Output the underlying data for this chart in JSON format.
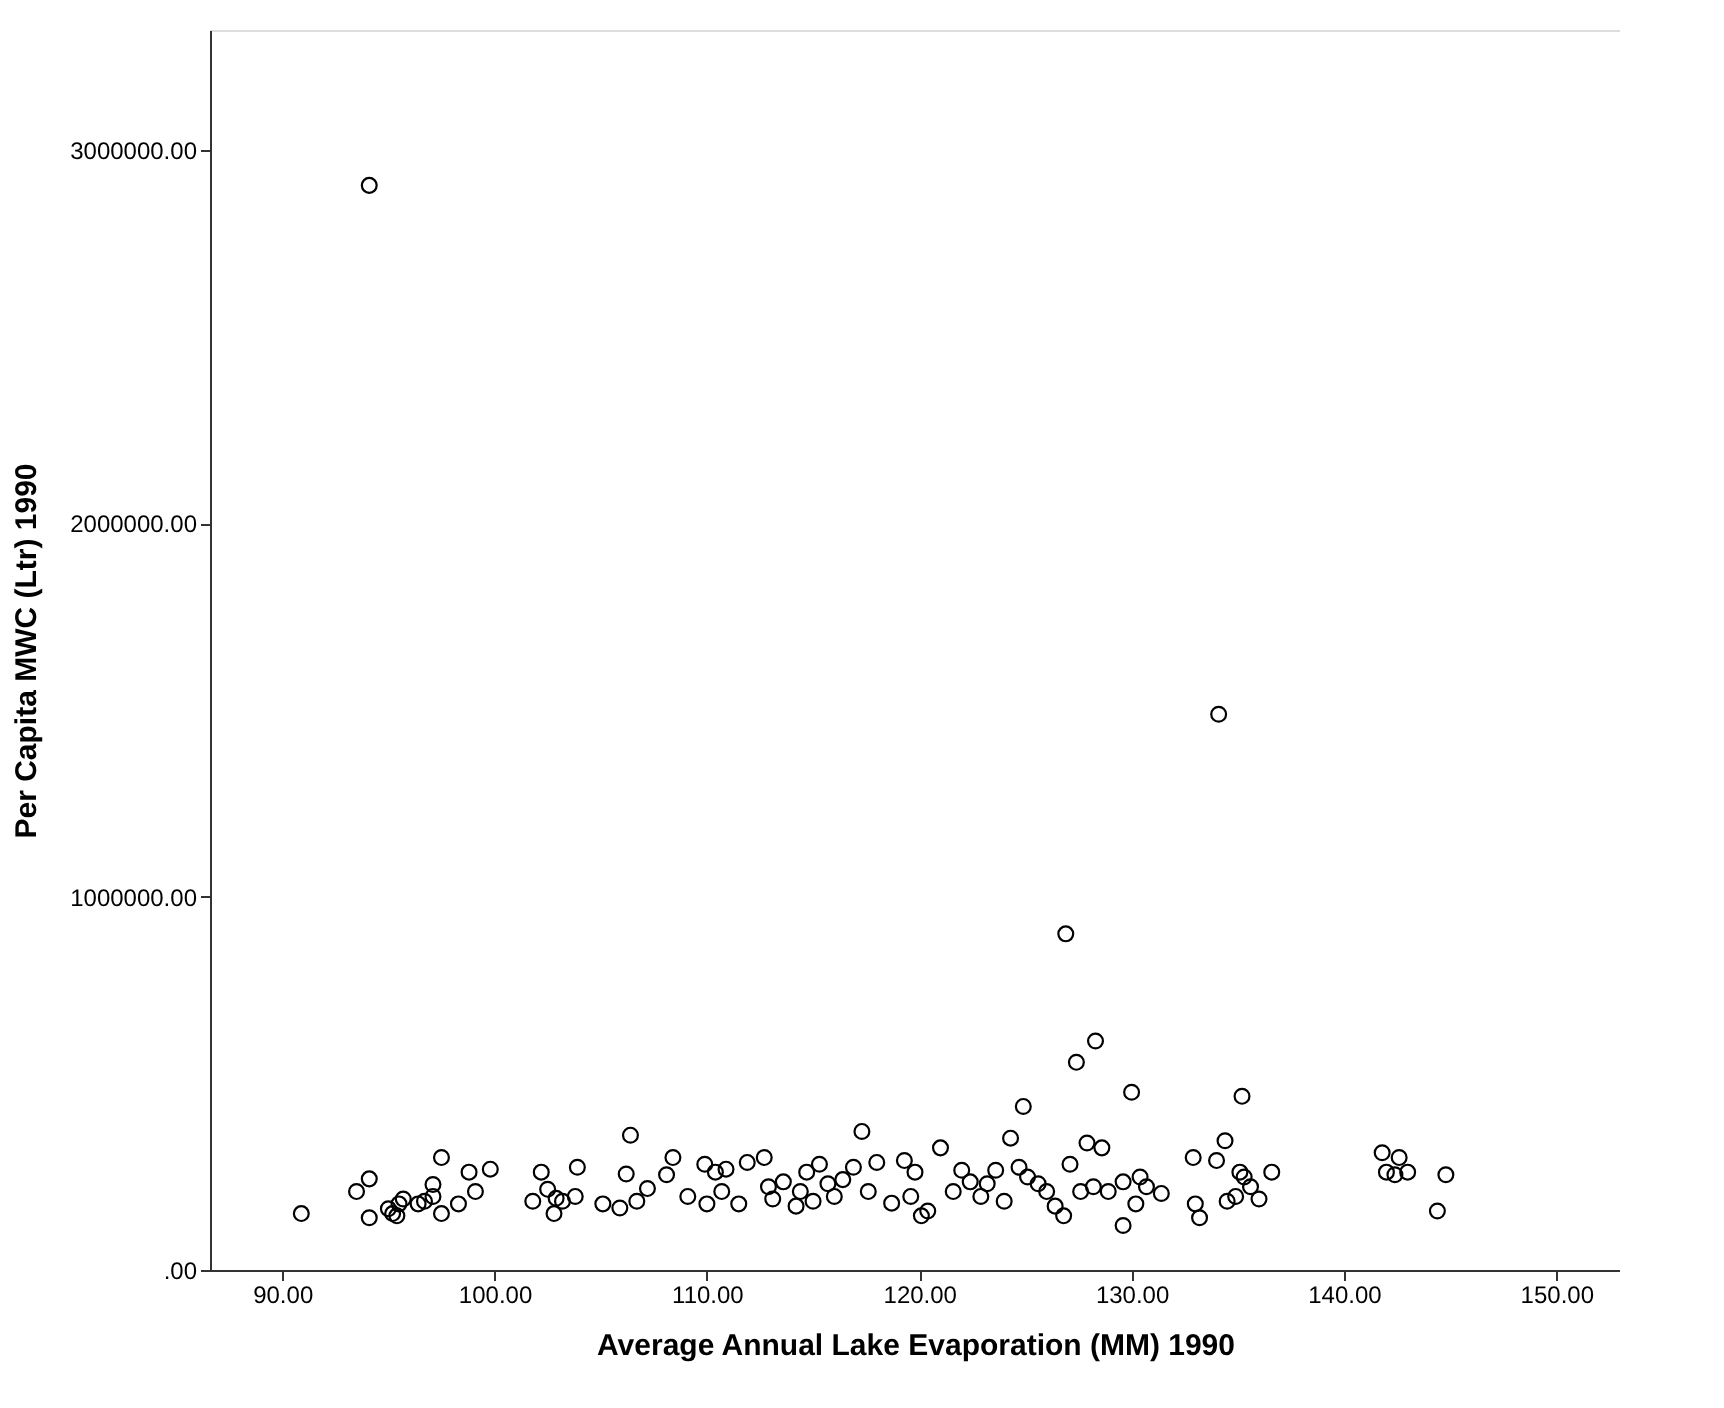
{
  "chart_data": {
    "type": "scatter",
    "xlabel": "Average Annual Lake Evaporation (MM) 1990",
    "ylabel": "Per Capita MWC (Ltr) 1990",
    "xlim": [
      86.6,
      153
    ],
    "ylim": [
      0,
      3320000
    ],
    "xticks": [
      {
        "value": 90,
        "label": "90.00"
      },
      {
        "value": 100,
        "label": "100.00"
      },
      {
        "value": 110,
        "label": "110.00"
      },
      {
        "value": 120,
        "label": "120.00"
      },
      {
        "value": 130,
        "label": "130.00"
      },
      {
        "value": 140,
        "label": "140.00"
      },
      {
        "value": 150,
        "label": "150.00"
      }
    ],
    "yticks": [
      {
        "value": 0,
        "label": ".00"
      },
      {
        "value": 1000000,
        "label": "1000000.00"
      },
      {
        "value": 2000000,
        "label": "2000000.00"
      },
      {
        "value": 3000000,
        "label": "3000000.00"
      }
    ],
    "grid": false,
    "legend": false,
    "marker": "circle",
    "series": [
      {
        "color": "#000000",
        "x": [
          94.1,
          134.1,
          126.9,
          128.3,
          127.4,
          130.0,
          135.2,
          124.9,
          117.3,
          90.9,
          93.5,
          94.1,
          94.1,
          95.0,
          95.2,
          95.4,
          95.5,
          95.7,
          96.4,
          96.7,
          97.1,
          97.1,
          97.5,
          97.5,
          98.3,
          98.8,
          99.1,
          99.8,
          101.8,
          102.2,
          102.5,
          102.8,
          102.9,
          103.2,
          103.8,
          103.9,
          105.1,
          105.9,
          106.2,
          106.4,
          106.7,
          107.2,
          108.1,
          108.4,
          109.1,
          109.9,
          110.0,
          110.4,
          110.7,
          110.9,
          111.5,
          111.9,
          112.7,
          112.9,
          113.1,
          113.6,
          114.2,
          114.4,
          114.7,
          115.0,
          115.3,
          115.7,
          116.0,
          116.4,
          116.9,
          117.6,
          118.0,
          118.7,
          119.3,
          119.6,
          119.8,
          120.1,
          120.4,
          121.0,
          121.6,
          122.0,
          122.4,
          122.9,
          123.2,
          123.6,
          124.0,
          124.3,
          124.7,
          125.1,
          125.6,
          126.0,
          126.4,
          126.8,
          127.1,
          127.6,
          127.9,
          128.2,
          128.6,
          128.9,
          129.6,
          130.2,
          130.4,
          130.7,
          131.4,
          129.6,
          132.9,
          133.0,
          133.2,
          134.0,
          134.4,
          134.5,
          134.9,
          135.1,
          135.3,
          135.6,
          136.0,
          136.6,
          141.8,
          142.0,
          142.4,
          142.6,
          143.0,
          144.4,
          144.8
        ],
        "values": [
          2904000,
          1488000,
          900000,
          613000,
          556000,
          476000,
          465000,
          438000,
          371000,
          151000,
          210000,
          244000,
          140000,
          164000,
          151000,
          145000,
          177000,
          190000,
          177000,
          184000,
          229000,
          197000,
          301000,
          151000,
          177000,
          262000,
          210000,
          270000,
          184000,
          262000,
          216000,
          151000,
          192000,
          184000,
          197000,
          275000,
          177000,
          166000,
          257000,
          361000,
          184000,
          218000,
          255000,
          301000,
          197000,
          283000,
          177000,
          262000,
          210000,
          270000,
          177000,
          288000,
          301000,
          223000,
          190000,
          236000,
          171000,
          210000,
          262000,
          184000,
          283000,
          231000,
          197000,
          242000,
          275000,
          210000,
          288000,
          179000,
          293000,
          197000,
          262000,
          145000,
          158000,
          327000,
          210000,
          267000,
          236000,
          197000,
          231000,
          267000,
          184000,
          353000,
          275000,
          249000,
          231000,
          210000,
          171000,
          145000,
          283000,
          210000,
          340000,
          223000,
          327000,
          210000,
          236000,
          177000,
          249000,
          223000,
          205000,
          119000,
          301000,
          177000,
          140000,
          293000,
          346000,
          184000,
          197000,
          262000,
          249000,
          223000,
          190000,
          262000,
          314000,
          262000,
          255000,
          301000,
          262000,
          158000,
          255000
        ]
      }
    ]
  }
}
